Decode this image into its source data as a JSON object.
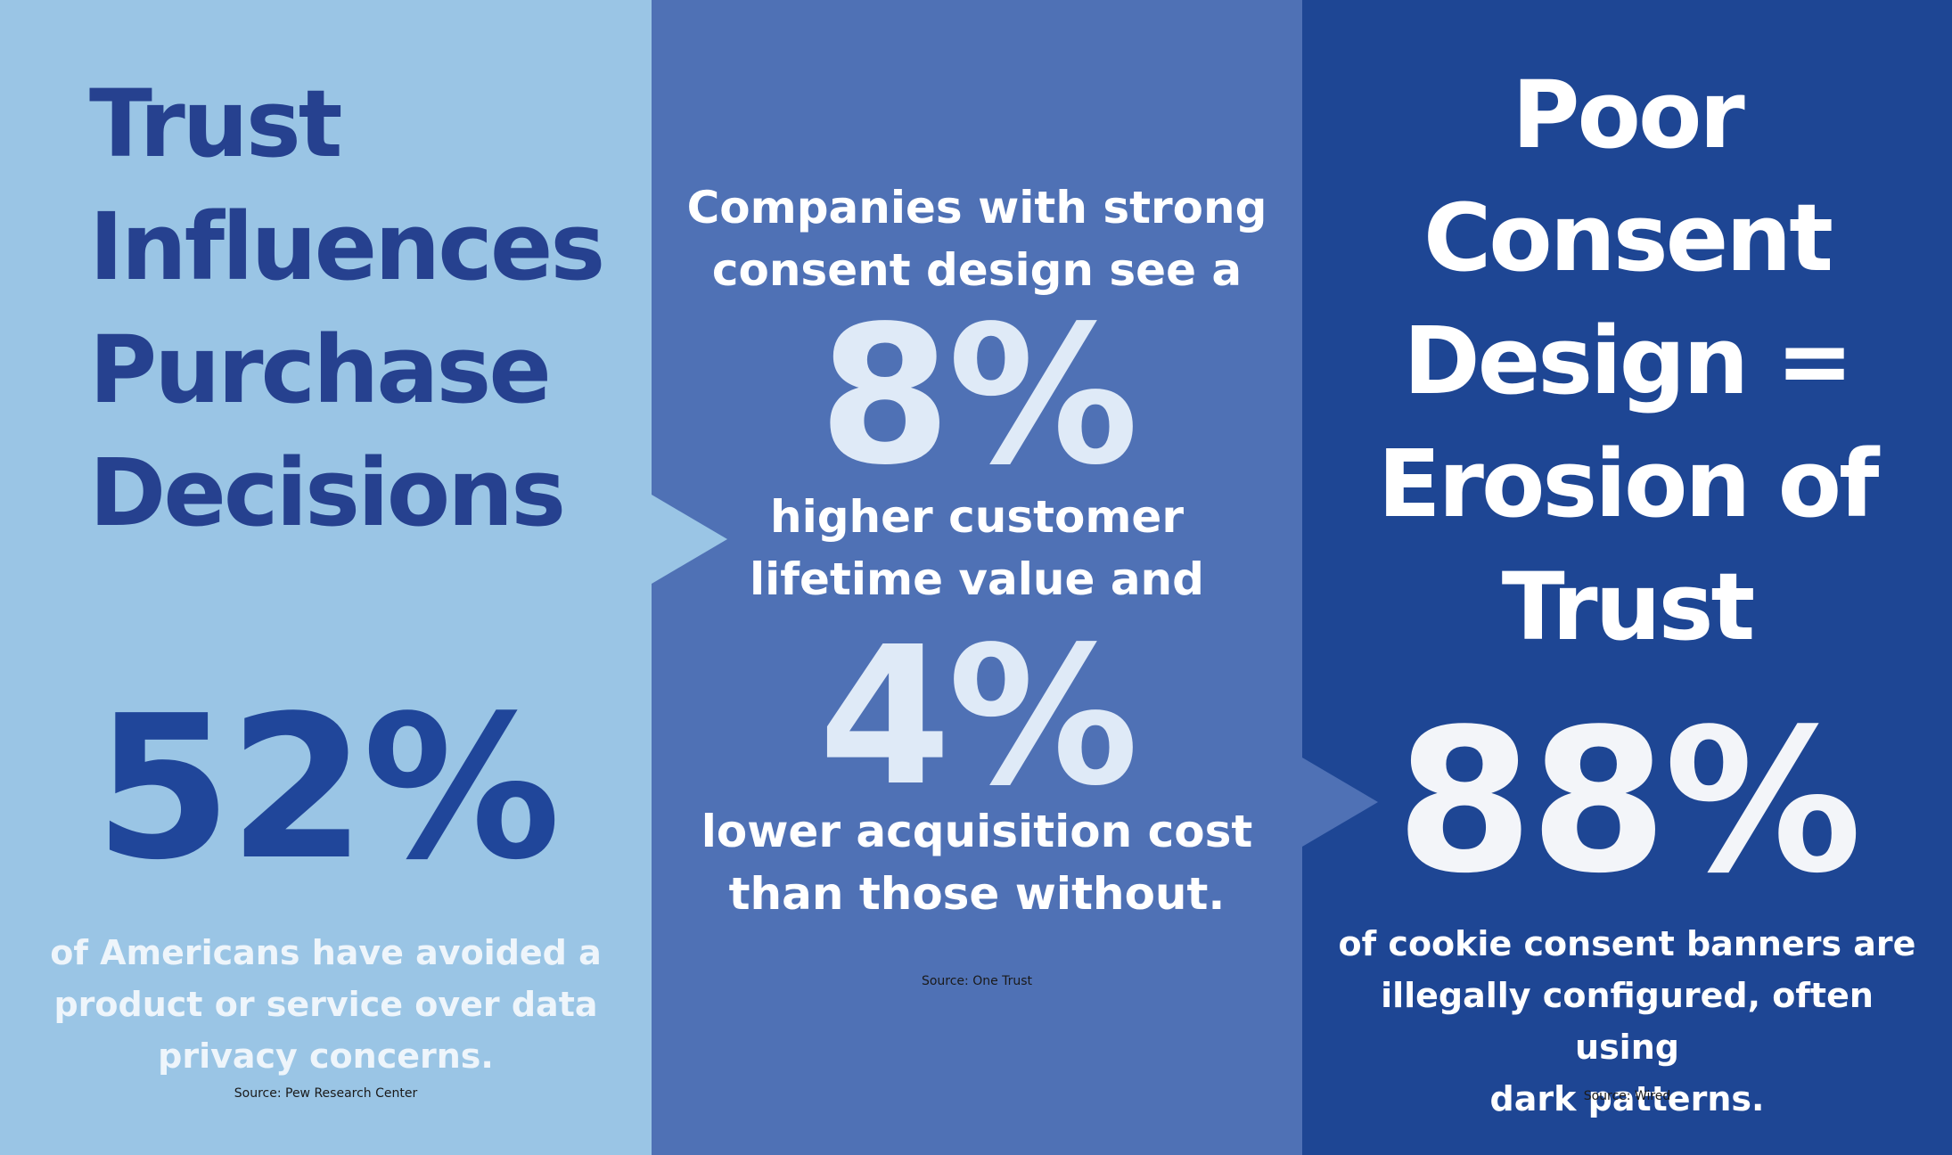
{
  "colors": {
    "panel_light": "#9ac5e5",
    "panel_mid": "#4f71b5",
    "panel_dark": "#1e4694"
  },
  "panel1": {
    "title_lines": [
      "Trust",
      "Influences",
      "Purchase",
      "Decisions"
    ],
    "stat": "52%",
    "description_lines": [
      "of Americans have avoided a",
      "product or service over data",
      "privacy concerns."
    ],
    "source": "Source: Pew Research Center"
  },
  "panel2": {
    "intro_lines": [
      "Companies with strong",
      "consent design see a"
    ],
    "stat_a": "8%",
    "middle_lines": [
      "higher customer",
      "lifetime value and"
    ],
    "stat_b": "4%",
    "end_lines": [
      "lower acquisition cost",
      "than those without."
    ],
    "source": "Source: One Trust"
  },
  "panel3": {
    "title_lines": [
      "Poor",
      "Consent",
      "Design =",
      "Erosion of",
      "Trust"
    ],
    "stat": "88%",
    "description_lines": [
      "of cookie consent banners are",
      "illegally configured, often using",
      "dark patterns."
    ],
    "source": "Source: Wired"
  }
}
